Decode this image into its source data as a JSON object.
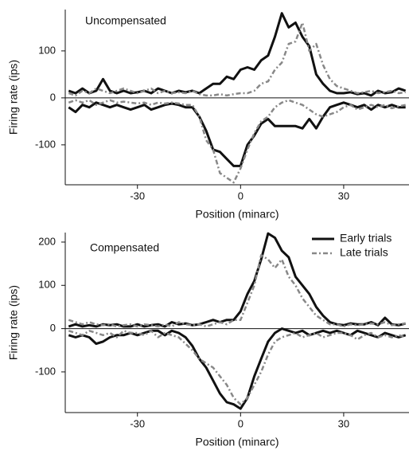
{
  "chart_data": [
    {
      "type": "line",
      "annotation": "Uncompensated",
      "xlabel": "Position (minarc)",
      "ylabel": "Firing rate (ips)",
      "xlim": [
        -51,
        49
      ],
      "ylim": [
        -185,
        188
      ],
      "xticks": [
        -30,
        0,
        30
      ],
      "yticks": [
        -100,
        0,
        100
      ],
      "zero_line": true,
      "x": [
        -50,
        -48,
        -46,
        -44,
        -42,
        -40,
        -38,
        -36,
        -34,
        -32,
        -30,
        -28,
        -26,
        -24,
        -22,
        -20,
        -18,
        -16,
        -14,
        -12,
        -10,
        -8,
        -6,
        -4,
        -2,
        0,
        2,
        4,
        6,
        8,
        10,
        12,
        14,
        16,
        18,
        20,
        22,
        24,
        26,
        28,
        30,
        32,
        34,
        36,
        38,
        40,
        42,
        44,
        46,
        48
      ],
      "series": [
        {
          "color": "#111111",
          "style": "solid",
          "values": [
            15,
            10,
            20,
            10,
            15,
            40,
            15,
            10,
            15,
            10,
            12,
            15,
            10,
            20,
            15,
            10,
            15,
            12,
            15,
            10,
            20,
            30,
            30,
            45,
            40,
            60,
            65,
            60,
            80,
            90,
            130,
            180,
            150,
            160,
            130,
            110,
            50,
            30,
            15,
            10,
            10,
            12,
            8,
            10,
            5,
            15,
            10,
            12,
            20,
            15
          ]
        },
        {
          "color": "#111111",
          "style": "solid",
          "values": [
            -20,
            -30,
            -15,
            -20,
            -10,
            -15,
            -20,
            -15,
            -20,
            -25,
            -20,
            -15,
            -25,
            -20,
            -15,
            -12,
            -15,
            -20,
            -20,
            -40,
            -70,
            -110,
            -115,
            -130,
            -145,
            -145,
            -100,
            -80,
            -55,
            -45,
            -60,
            -60,
            -60,
            -60,
            -65,
            -45,
            -65,
            -40,
            -20,
            -15,
            -10,
            -15,
            -20,
            -15,
            -25,
            -15,
            -20,
            -15,
            -20,
            -20
          ]
        },
        {
          "color": "#888888",
          "style": "dashdot",
          "values": [
            10,
            5,
            15,
            10,
            20,
            15,
            10,
            15,
            20,
            15,
            10,
            15,
            20,
            10,
            15,
            10,
            12,
            10,
            15,
            8,
            5,
            5,
            8,
            5,
            8,
            10,
            10,
            15,
            30,
            35,
            60,
            75,
            115,
            120,
            160,
            100,
            115,
            70,
            40,
            25,
            20,
            15,
            10,
            12,
            15,
            10,
            12,
            15,
            10,
            12
          ]
        },
        {
          "color": "#888888",
          "style": "dashdot",
          "values": [
            -10,
            -5,
            -10,
            -5,
            -15,
            -10,
            -5,
            -10,
            -8,
            -10,
            -12,
            -10,
            -15,
            -10,
            -12,
            -10,
            -12,
            -15,
            -15,
            -40,
            -90,
            -110,
            -160,
            -170,
            -180,
            -150,
            -110,
            -75,
            -50,
            -40,
            -20,
            -10,
            -5,
            -10,
            -15,
            -25,
            -35,
            -40,
            -35,
            -30,
            -20,
            -15,
            -25,
            -20,
            -15,
            -20,
            -15,
            -22,
            -18,
            -15
          ]
        }
      ]
    },
    {
      "type": "line",
      "annotation": "Compensated",
      "xlabel": "Position (minarc)",
      "ylabel": "Firing rate (ips)",
      "xlim": [
        -51,
        49
      ],
      "ylim": [
        -194,
        222
      ],
      "xticks": [
        -30,
        0,
        30
      ],
      "yticks": [
        -100,
        0,
        100,
        200
      ],
      "zero_line": true,
      "legend": "top-right",
      "x": [
        -50,
        -48,
        -46,
        -44,
        -42,
        -40,
        -38,
        -36,
        -34,
        -32,
        -30,
        -28,
        -26,
        -24,
        -22,
        -20,
        -18,
        -16,
        -14,
        -12,
        -10,
        -8,
        -6,
        -4,
        -2,
        0,
        2,
        4,
        6,
        8,
        10,
        12,
        14,
        16,
        18,
        20,
        22,
        24,
        26,
        28,
        30,
        32,
        34,
        36,
        38,
        40,
        42,
        44,
        46,
        48
      ],
      "series": [
        {
          "name": "Early trials",
          "color": "#111111",
          "style": "solid",
          "values": [
            5,
            10,
            5,
            8,
            5,
            10,
            8,
            10,
            5,
            5,
            10,
            5,
            8,
            10,
            5,
            15,
            10,
            12,
            8,
            10,
            15,
            20,
            15,
            20,
            20,
            40,
            80,
            110,
            160,
            220,
            210,
            180,
            165,
            120,
            100,
            80,
            50,
            30,
            15,
            10,
            8,
            12,
            10,
            10,
            15,
            8,
            25,
            10,
            8,
            12
          ]
        },
        {
          "color": "#111111",
          "style": "solid",
          "values": [
            -15,
            -20,
            -15,
            -20,
            -35,
            -30,
            -20,
            -15,
            -15,
            -10,
            -15,
            -10,
            -5,
            -5,
            -15,
            -5,
            -10,
            -20,
            -40,
            -70,
            -90,
            -120,
            -150,
            -170,
            -175,
            -185,
            -160,
            -110,
            -70,
            -30,
            -10,
            0,
            -5,
            -10,
            -5,
            -15,
            -10,
            -5,
            -10,
            -5,
            -10,
            -15,
            -5,
            -10,
            -15,
            -20,
            -10,
            -15,
            -20,
            -15
          ]
        },
        {
          "name": "Late trials",
          "color": "#888888",
          "style": "dashdot",
          "values": [
            20,
            15,
            10,
            15,
            10,
            8,
            10,
            5,
            8,
            10,
            5,
            10,
            8,
            5,
            10,
            5,
            15,
            10,
            8,
            10,
            5,
            10,
            15,
            10,
            20,
            20,
            60,
            100,
            170,
            160,
            140,
            160,
            120,
            100,
            70,
            50,
            30,
            20,
            10,
            10,
            5,
            10,
            8,
            10,
            12,
            10,
            15,
            8,
            10,
            12
          ]
        },
        {
          "color": "#888888",
          "style": "dashdot",
          "values": [
            -5,
            -10,
            -15,
            -5,
            -10,
            -15,
            -10,
            -20,
            -5,
            -10,
            -10,
            -15,
            -5,
            -20,
            -10,
            -15,
            -20,
            -35,
            -50,
            -70,
            -80,
            -90,
            -110,
            -130,
            -160,
            -175,
            -160,
            -130,
            -100,
            -60,
            -30,
            -20,
            -15,
            -10,
            -20,
            -15,
            -10,
            -20,
            -15,
            -10,
            -10,
            -15,
            -25,
            -15,
            -10,
            -20,
            -15,
            -20,
            -15,
            -20
          ]
        }
      ]
    }
  ]
}
